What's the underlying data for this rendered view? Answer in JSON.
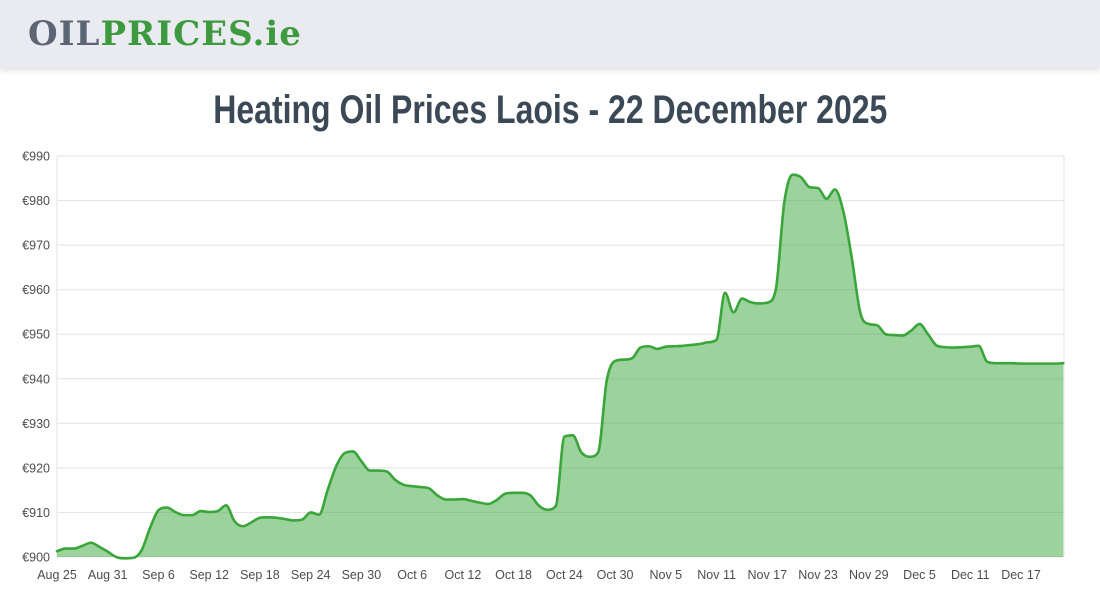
{
  "header": {
    "logo_oil": "OIL",
    "logo_prices": "PRICES",
    "logo_domain": ".ie"
  },
  "title": "Heating Oil Prices Laois - 22 December 2025",
  "chart_data": {
    "type": "area",
    "title": "Heating Oil Prices Laois - 22 December 2025",
    "currency": "EUR",
    "xlabel": "",
    "ylabel": "",
    "ylim": [
      900,
      990
    ],
    "y_ticks": [
      900,
      910,
      920,
      930,
      940,
      950,
      960,
      970,
      980,
      990
    ],
    "y_tick_prefix": "€",
    "grid": true,
    "legend": "none",
    "x_unit": "days",
    "x_start": "Aug 25",
    "x_end": "Dec 22",
    "x_ticks": [
      {
        "label": "Aug 25",
        "day": 0
      },
      {
        "label": "Aug 31",
        "day": 6
      },
      {
        "label": "Sep 6",
        "day": 12
      },
      {
        "label": "Sep 12",
        "day": 18
      },
      {
        "label": "Sep 18",
        "day": 24
      },
      {
        "label": "Sep 24",
        "day": 30
      },
      {
        "label": "Sep 30",
        "day": 36
      },
      {
        "label": "Oct 6",
        "day": 42
      },
      {
        "label": "Oct 12",
        "day": 48
      },
      {
        "label": "Oct 18",
        "day": 54
      },
      {
        "label": "Oct 24",
        "day": 60
      },
      {
        "label": "Oct 30",
        "day": 66
      },
      {
        "label": "Nov 5",
        "day": 72
      },
      {
        "label": "Nov 11",
        "day": 78
      },
      {
        "label": "Nov 17",
        "day": 84
      },
      {
        "label": "Nov 23",
        "day": 90
      },
      {
        "label": "Nov 29",
        "day": 96
      },
      {
        "label": "Dec 5",
        "day": 102
      },
      {
        "label": "Dec 11",
        "day": 108
      },
      {
        "label": "Dec 17",
        "day": 114
      }
    ],
    "values": [
      901.3,
      901.9,
      901.9,
      902.5,
      903.2,
      902.3,
      901.2,
      900.0,
      899.7,
      899.8,
      901.5,
      906.5,
      910.5,
      911.1,
      910.1,
      909.4,
      909.4,
      910.3,
      910.1,
      910.3,
      911.6,
      908.0,
      906.9,
      907.8,
      908.8,
      908.9,
      908.8,
      908.5,
      908.2,
      908.4,
      910.0,
      909.5,
      915.0,
      920.3,
      923.3,
      923.7,
      921.5,
      919.4,
      919.4,
      919.2,
      917.3,
      916.2,
      915.9,
      915.7,
      915.4,
      913.8,
      912.9,
      912.9,
      913.0,
      912.6,
      912.2,
      911.9,
      912.8,
      914.2,
      914.4,
      914.4,
      913.8,
      911.5,
      910.6,
      911.5,
      927.0,
      927.3,
      923.5,
      922.5,
      923.5,
      939.5,
      944.0,
      944.3,
      944.6,
      947.0,
      947.3,
      946.7,
      947.2,
      947.3,
      947.4,
      947.6,
      947.8,
      948.2,
      948.8,
      959.3,
      954.9,
      958.0,
      957.2,
      956.9,
      957.1,
      960.0,
      979.5,
      985.8,
      985.2,
      983.0,
      982.8,
      980.4,
      982.5,
      977.5,
      967.0,
      954.8,
      952.3,
      952.0,
      950.0,
      949.8,
      949.7,
      950.8,
      952.3,
      950.0,
      947.5,
      947.1,
      947.0,
      947.1,
      947.2,
      947.4,
      943.8,
      943.5,
      943.5,
      943.5,
      943.4,
      943.4,
      943.4,
      943.4,
      943.4,
      943.5
    ],
    "colors": {
      "line": "#3aa53a",
      "fill": "#3aa53a",
      "fill_opacity": 0.5,
      "grid": "#e2e2e2",
      "axis_text": "#4d4d4d",
      "header_bg": "#e9ebf1",
      "logo_gray": "#5c6574",
      "logo_green": "#3e9a3e",
      "title_color": "#3b4855"
    }
  }
}
